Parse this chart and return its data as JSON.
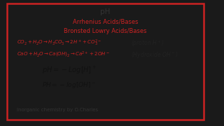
{
  "bg_color": "#f0f0ee",
  "border_color_red": "#cc2222",
  "title": "pH",
  "title_color": "#333333",
  "title_fontsize": 7.5,
  "line1": "Arrhenius Acids/Bases",
  "line1_color": "#cc2222",
  "line1_fontsize": 6.0,
  "line2": "Bronsted Lowry Acids/Bases",
  "line2_color": "#cc2222",
  "line2_fontsize": 6.0,
  "eq1_color": "#cc2222",
  "eq1_fontsize": 5.0,
  "eq2_color": "#cc2222",
  "eq2_fontsize": 5.0,
  "note1": "(proton H",
  "note1_sup": "+",
  "note2": "(Hydroxide OH",
  "note2_sup": "-",
  "note_color": "#222222",
  "note_color_red": "#cc2222",
  "note_fontsize": 5.5,
  "ph1_fontsize": 7.0,
  "ph2_fontsize": 6.5,
  "ph_color": "#111111",
  "footer": "Inorganic chemistry by O.Charles",
  "footer_color": "#333333",
  "footer_fontsize": 5.0,
  "outer_bg": "#1a1a1a"
}
